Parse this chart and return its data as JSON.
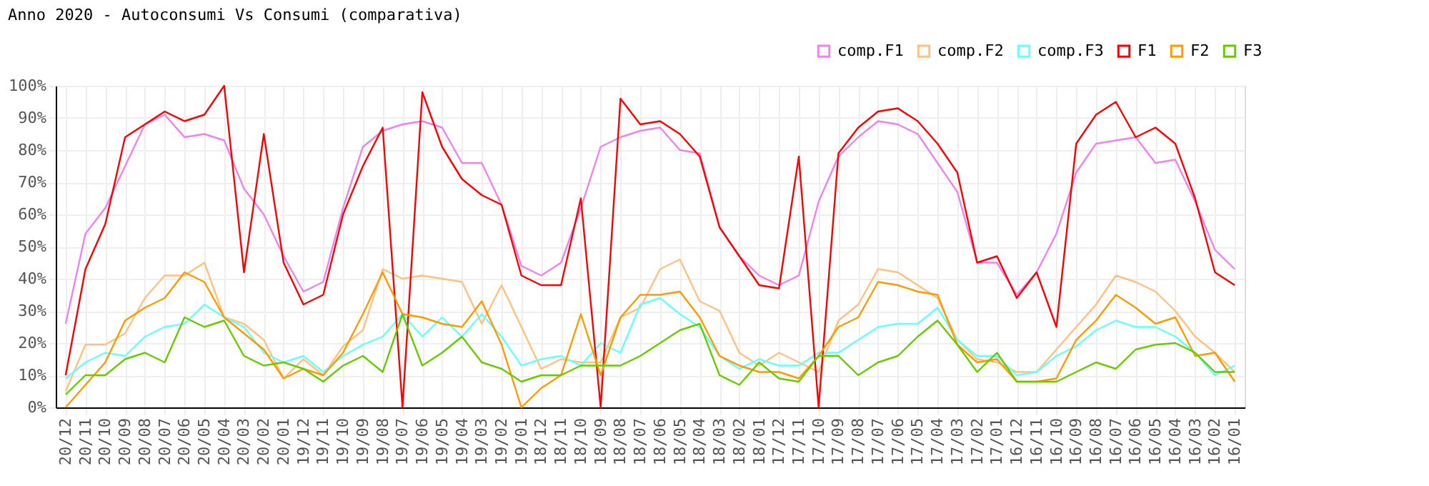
{
  "chart_data": {
    "type": "line",
    "title": "Anno 2020 - Autoconsumi Vs Consumi (comparativa)",
    "categories": [
      "20/12",
      "20/11",
      "20/10",
      "20/09",
      "20/08",
      "20/07",
      "20/06",
      "20/05",
      "20/04",
      "20/03",
      "20/02",
      "20/01",
      "19/12",
      "19/11",
      "19/10",
      "19/09",
      "19/08",
      "19/07",
      "19/06",
      "19/05",
      "19/04",
      "19/03",
      "19/02",
      "19/01",
      "18/12",
      "18/11",
      "18/10",
      "18/09",
      "18/08",
      "18/07",
      "18/06",
      "18/05",
      "18/04",
      "18/03",
      "18/02",
      "18/01",
      "17/12",
      "17/11",
      "17/10",
      "17/09",
      "17/08",
      "17/07",
      "17/06",
      "17/05",
      "17/04",
      "17/03",
      "17/02",
      "17/01",
      "16/12",
      "16/11",
      "16/10",
      "16/09",
      "16/08",
      "16/07",
      "16/06",
      "16/05",
      "16/04",
      "16/03",
      "16/02",
      "16/01"
    ],
    "series": [
      {
        "name": "comp.F1",
        "color": "#ee82ee",
        "values": [
          26,
          54,
          62,
          75,
          88,
          91,
          84,
          85,
          83,
          68,
          60,
          47,
          36,
          39,
          62,
          81,
          86,
          88,
          89,
          87,
          76,
          76,
          63,
          44,
          41,
          45,
          62,
          81,
          84,
          86,
          87,
          80,
          79,
          56,
          47,
          41,
          38,
          41,
          64,
          78,
          84,
          89,
          88,
          85,
          76,
          67,
          45,
          45,
          35,
          42,
          54,
          73,
          82,
          83,
          84,
          76,
          77,
          64,
          49,
          43
        ]
      },
      {
        "name": "comp.F2",
        "color": "#ffc080",
        "values": [
          5,
          19.5,
          19.5,
          23,
          34,
          41,
          41,
          45,
          28,
          26,
          21,
          9,
          15,
          10,
          19,
          24,
          43,
          40,
          41,
          40,
          39,
          26,
          38,
          25,
          12,
          15,
          14,
          14,
          28,
          31,
          43,
          46,
          33,
          30,
          17,
          13,
          17,
          14,
          11,
          27,
          32,
          43,
          42,
          38,
          34,
          21,
          15,
          14,
          11,
          11,
          18,
          25,
          32,
          41,
          39,
          36,
          30,
          22,
          17,
          11
        ]
      },
      {
        "name": "comp.F3",
        "color": "#66ffff",
        "values": [
          9,
          14,
          17,
          16,
          22,
          25,
          26,
          32,
          28,
          25,
          17,
          14,
          16,
          11,
          16,
          19.5,
          22,
          29,
          22,
          28,
          22,
          29,
          22,
          13,
          15,
          16,
          13,
          20,
          17,
          32,
          34,
          29,
          25,
          16,
          12,
          15,
          13,
          13,
          17,
          17,
          21,
          25,
          26,
          26,
          31,
          21,
          16,
          16,
          10,
          11,
          16,
          19,
          24,
          27,
          25,
          25,
          22,
          17,
          10,
          13
        ]
      },
      {
        "name": "F1",
        "color": "#ff0000",
        "values": [
          10,
          43,
          57,
          84,
          88,
          92,
          89,
          91,
          100,
          42,
          85,
          45,
          32,
          35,
          60,
          75,
          87,
          0,
          98,
          81,
          71,
          66,
          63,
          41,
          38,
          38,
          65,
          0,
          96,
          88,
          89,
          85,
          78,
          56,
          47,
          38,
          37,
          78,
          0,
          79,
          87,
          92,
          93,
          89,
          82,
          73,
          45,
          47,
          34,
          42,
          25,
          82,
          91,
          95,
          84,
          87,
          82,
          65,
          42,
          38
        ]
      },
      {
        "name": "F2",
        "color": "#ff9900",
        "values": [
          0,
          7,
          14,
          27,
          31,
          34,
          42,
          39,
          28,
          23,
          18,
          9,
          12,
          10,
          17,
          29,
          42,
          29,
          28,
          26,
          25,
          33,
          19.5,
          0,
          6,
          10,
          29,
          10,
          28,
          35,
          35,
          36,
          28,
          16,
          13,
          11,
          11,
          9,
          16,
          25,
          28,
          39,
          38,
          36,
          35,
          19.5,
          14,
          15,
          8,
          8,
          9,
          21,
          27,
          35,
          31,
          26,
          28,
          16,
          17,
          8
        ]
      },
      {
        "name": "F3",
        "color": "#66cc00",
        "values": [
          4,
          10,
          10,
          15,
          17,
          14,
          28,
          25,
          27,
          16,
          13,
          14,
          12,
          8,
          13,
          16,
          11,
          29,
          13,
          17,
          22,
          14,
          12,
          8,
          10,
          10,
          13,
          13,
          13,
          16,
          20,
          24,
          26,
          10,
          7,
          14,
          9,
          8,
          16,
          16,
          10,
          14,
          16,
          22,
          27,
          19.5,
          11,
          17,
          8,
          8,
          8,
          11,
          14,
          12,
          18,
          19.5,
          20,
          17,
          11,
          11
        ]
      }
    ],
    "ylim": [
      0,
      100
    ],
    "yticks": [
      {
        "value": 0,
        "label": "0%"
      },
      {
        "value": 10,
        "label": "10%"
      },
      {
        "value": 20,
        "label": "20%"
      },
      {
        "value": 30,
        "label": "30%"
      },
      {
        "value": 40,
        "label": "40%"
      },
      {
        "value": 50,
        "label": "50%"
      },
      {
        "value": 60,
        "label": "60%"
      },
      {
        "value": 70,
        "label": "70%"
      },
      {
        "value": 80,
        "label": "80%"
      },
      {
        "value": 90,
        "label": "90%"
      },
      {
        "value": 100,
        "label": "100%"
      }
    ],
    "grid": true,
    "legend": "top right",
    "marker": "none",
    "line_style": "solid"
  }
}
